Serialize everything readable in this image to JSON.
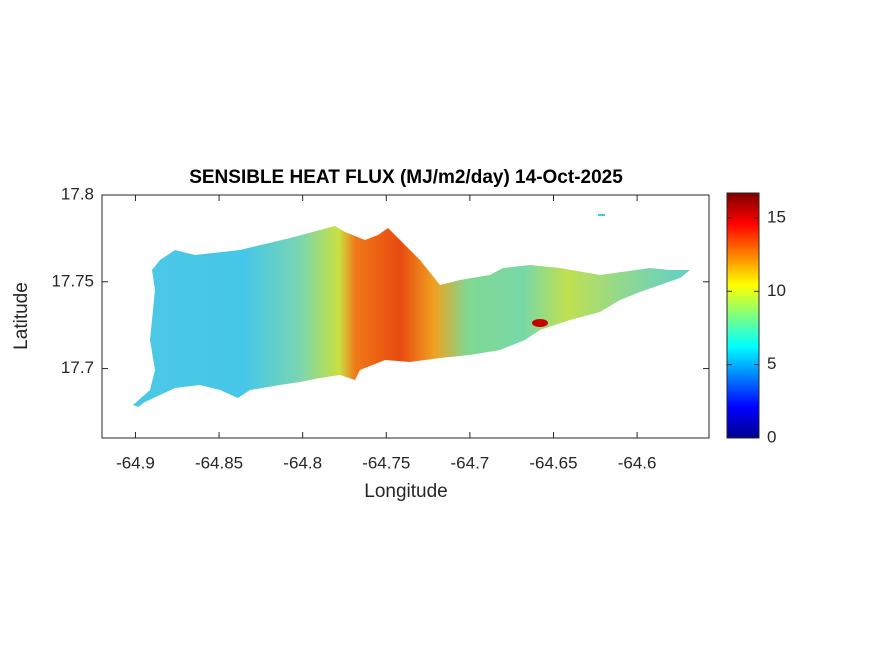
{
  "chart_data": {
    "type": "map",
    "title": "SENSIBLE HEAT FLUX (MJ/m2/day) 14-Oct-2025",
    "xlabel": "Longitude",
    "ylabel": "Latitude",
    "xlim": [
      -64.92,
      -64.557
    ],
    "xticks": [
      -64.9,
      -64.85,
      -64.8,
      -64.75,
      -64.7,
      -64.65,
      -64.6
    ],
    "ylim": [
      17.66,
      17.8
    ],
    "yticks": [
      17.7,
      17.75,
      17.8
    ],
    "colorbar": {
      "lim": [
        0,
        16.7
      ],
      "ticks": [
        0,
        5,
        10,
        15
      ],
      "colormap": "jet"
    }
  }
}
